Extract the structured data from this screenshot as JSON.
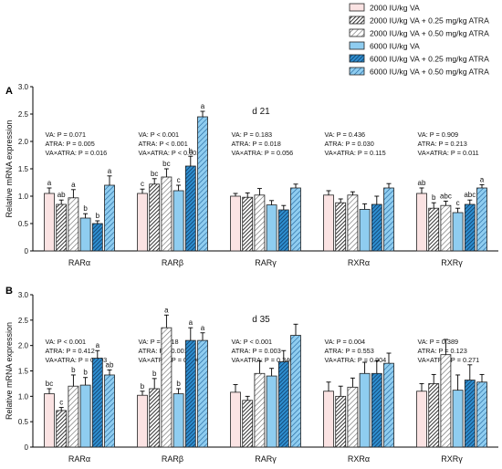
{
  "legend": [
    {
      "label": "2000 IU/kg VA",
      "fill": "#fbe3e3",
      "pattern": "none"
    },
    {
      "label": "2000 IU/kg VA + 0.25 mg/kg ATRA",
      "fill": "#ffffff",
      "pattern": "dense-gray"
    },
    {
      "label": "2000 IU/kg VA + 0.50 mg/kg ATRA",
      "fill": "#ffffff",
      "pattern": "light-gray"
    },
    {
      "label": "6000 IU/kg VA",
      "fill": "#8fcdf0",
      "pattern": "none"
    },
    {
      "label": "6000 IU/kg VA + 0.25 mg/kg ATRA",
      "fill": "#2f8fd0",
      "pattern": "dense-blue"
    },
    {
      "label": "6000 IU/kg VA + 0.50 mg/kg ATRA",
      "fill": "#8fcdf0",
      "pattern": "light-blue"
    }
  ],
  "colors": {
    "pink": "#fbe3e3",
    "light_blue": "#8fcdf0",
    "blue": "#2f8fd0",
    "gray": "#555555",
    "outline": "#222222"
  },
  "chart_data": [
    {
      "type": "bar",
      "panel_label": "A",
      "title": "d 21",
      "ylabel": "Relative mRNA expression",
      "ylim": [
        0,
        3
      ],
      "yticks": [
        "0",
        "0.5",
        "1.0",
        "1.5",
        "2.0",
        "2.5",
        "3.0"
      ],
      "categories": [
        "RARα",
        "RARβ",
        "RARγ",
        "RXRα",
        "RXRγ"
      ],
      "stats": [
        [
          "VA: P = 0.071",
          "ATRA: P = 0.005",
          "VA×ATRA: P = 0.016"
        ],
        [
          "VA: P < 0.001",
          "ATRA: P < 0.001",
          "VA×ATRA: P < 0.001"
        ],
        [
          "VA: P = 0.183",
          "ATRA: P = 0.018",
          "VA×ATRA: P = 0.056"
        ],
        [
          "VA: P = 0.436",
          "ATRA: P = 0.030",
          "VA×ATRA: P = 0.115"
        ],
        [
          "VA: P = 0.909",
          "ATRA: P = 0.213",
          "VA×ATRA: P = 0.011"
        ]
      ],
      "values": [
        [
          1.05,
          0.85,
          0.97,
          0.6,
          0.5,
          1.2
        ],
        [
          1.05,
          1.22,
          1.35,
          1.1,
          1.55,
          2.45
        ],
        [
          1.0,
          0.98,
          1.02,
          0.84,
          0.75,
          1.15
        ],
        [
          1.02,
          0.88,
          1.02,
          0.76,
          0.85,
          1.15
        ],
        [
          1.05,
          0.78,
          0.83,
          0.7,
          0.85,
          1.15
        ]
      ],
      "errors": [
        [
          0.1,
          0.08,
          0.15,
          0.08,
          0.05,
          0.17
        ],
        [
          0.08,
          0.1,
          0.15,
          0.1,
          0.18,
          0.1
        ],
        [
          0.05,
          0.08,
          0.12,
          0.08,
          0.08,
          0.07
        ],
        [
          0.08,
          0.07,
          0.06,
          0.1,
          0.15,
          0.08
        ],
        [
          0.1,
          0.1,
          0.08,
          0.08,
          0.08,
          0.06
        ]
      ],
      "letters": [
        [
          "a",
          "ab",
          "a",
          "b",
          "b",
          "a"
        ],
        [
          "c",
          "bc",
          "bc",
          "c",
          "b",
          "a"
        ],
        [
          "",
          "",
          "",
          "",
          "",
          ""
        ],
        [
          "",
          "",
          "",
          "",
          "",
          ""
        ],
        [
          "ab",
          "b",
          "abc",
          "c",
          "abc",
          "a"
        ]
      ]
    },
    {
      "type": "bar",
      "panel_label": "B",
      "title": "d 35",
      "ylabel": "Relative mRNA expression",
      "ylim": [
        0,
        3
      ],
      "yticks": [
        "0",
        "0.5",
        "1.0",
        "1.5",
        "2.0",
        "2.5",
        "3.0"
      ],
      "categories": [
        "RARα",
        "RARβ",
        "RARγ",
        "RXRα",
        "RXRγ"
      ],
      "stats": [
        [
          "VA: P < 0.001",
          "ATRA: P = 0.412",
          "VA×ATRA: P = 0.003"
        ],
        [
          "VA: P = 0.118",
          "ATRA: P < 0.001",
          "VA×ATRA: P = 0.006"
        ],
        [
          "VA: P < 0.001",
          "ATRA: P = 0.003",
          "VA×ATRA: P = 0.340"
        ],
        [
          "VA: P = 0.004",
          "ATRA: P = 0.553",
          "VA×ATRA: P = 0.904"
        ],
        [
          "VA: P = 0.389",
          "ATRA: P = 0.123",
          "VA×ATRA: P = 0.271"
        ]
      ],
      "values": [
        [
          1.05,
          0.72,
          1.2,
          1.22,
          1.75,
          1.42
        ],
        [
          1.02,
          1.15,
          2.35,
          1.05,
          2.1,
          2.1
        ],
        [
          1.08,
          0.92,
          1.45,
          1.4,
          1.68,
          2.2
        ],
        [
          1.1,
          1.0,
          1.18,
          1.45,
          1.45,
          1.65
        ],
        [
          1.1,
          1.25,
          1.82,
          1.12,
          1.32,
          1.28
        ]
      ],
      "errors": [
        [
          0.1,
          0.06,
          0.22,
          0.15,
          0.15,
          0.1
        ],
        [
          0.08,
          0.2,
          0.25,
          0.1,
          0.25,
          0.15
        ],
        [
          0.15,
          0.08,
          0.25,
          0.15,
          0.22,
          0.22
        ],
        [
          0.18,
          0.2,
          0.18,
          0.22,
          0.25,
          0.2
        ],
        [
          0.15,
          0.18,
          0.3,
          0.3,
          0.3,
          0.15
        ]
      ],
      "letters": [
        [
          "bc",
          "c",
          "b",
          "b",
          "a",
          "ab"
        ],
        [
          "b",
          "b",
          "a",
          "b",
          "a",
          "a"
        ],
        [
          "",
          "",
          "",
          "",
          "",
          ""
        ],
        [
          "",
          "",
          "",
          "",
          "",
          ""
        ],
        [
          "",
          "",
          "",
          "",
          "",
          ""
        ]
      ]
    }
  ]
}
